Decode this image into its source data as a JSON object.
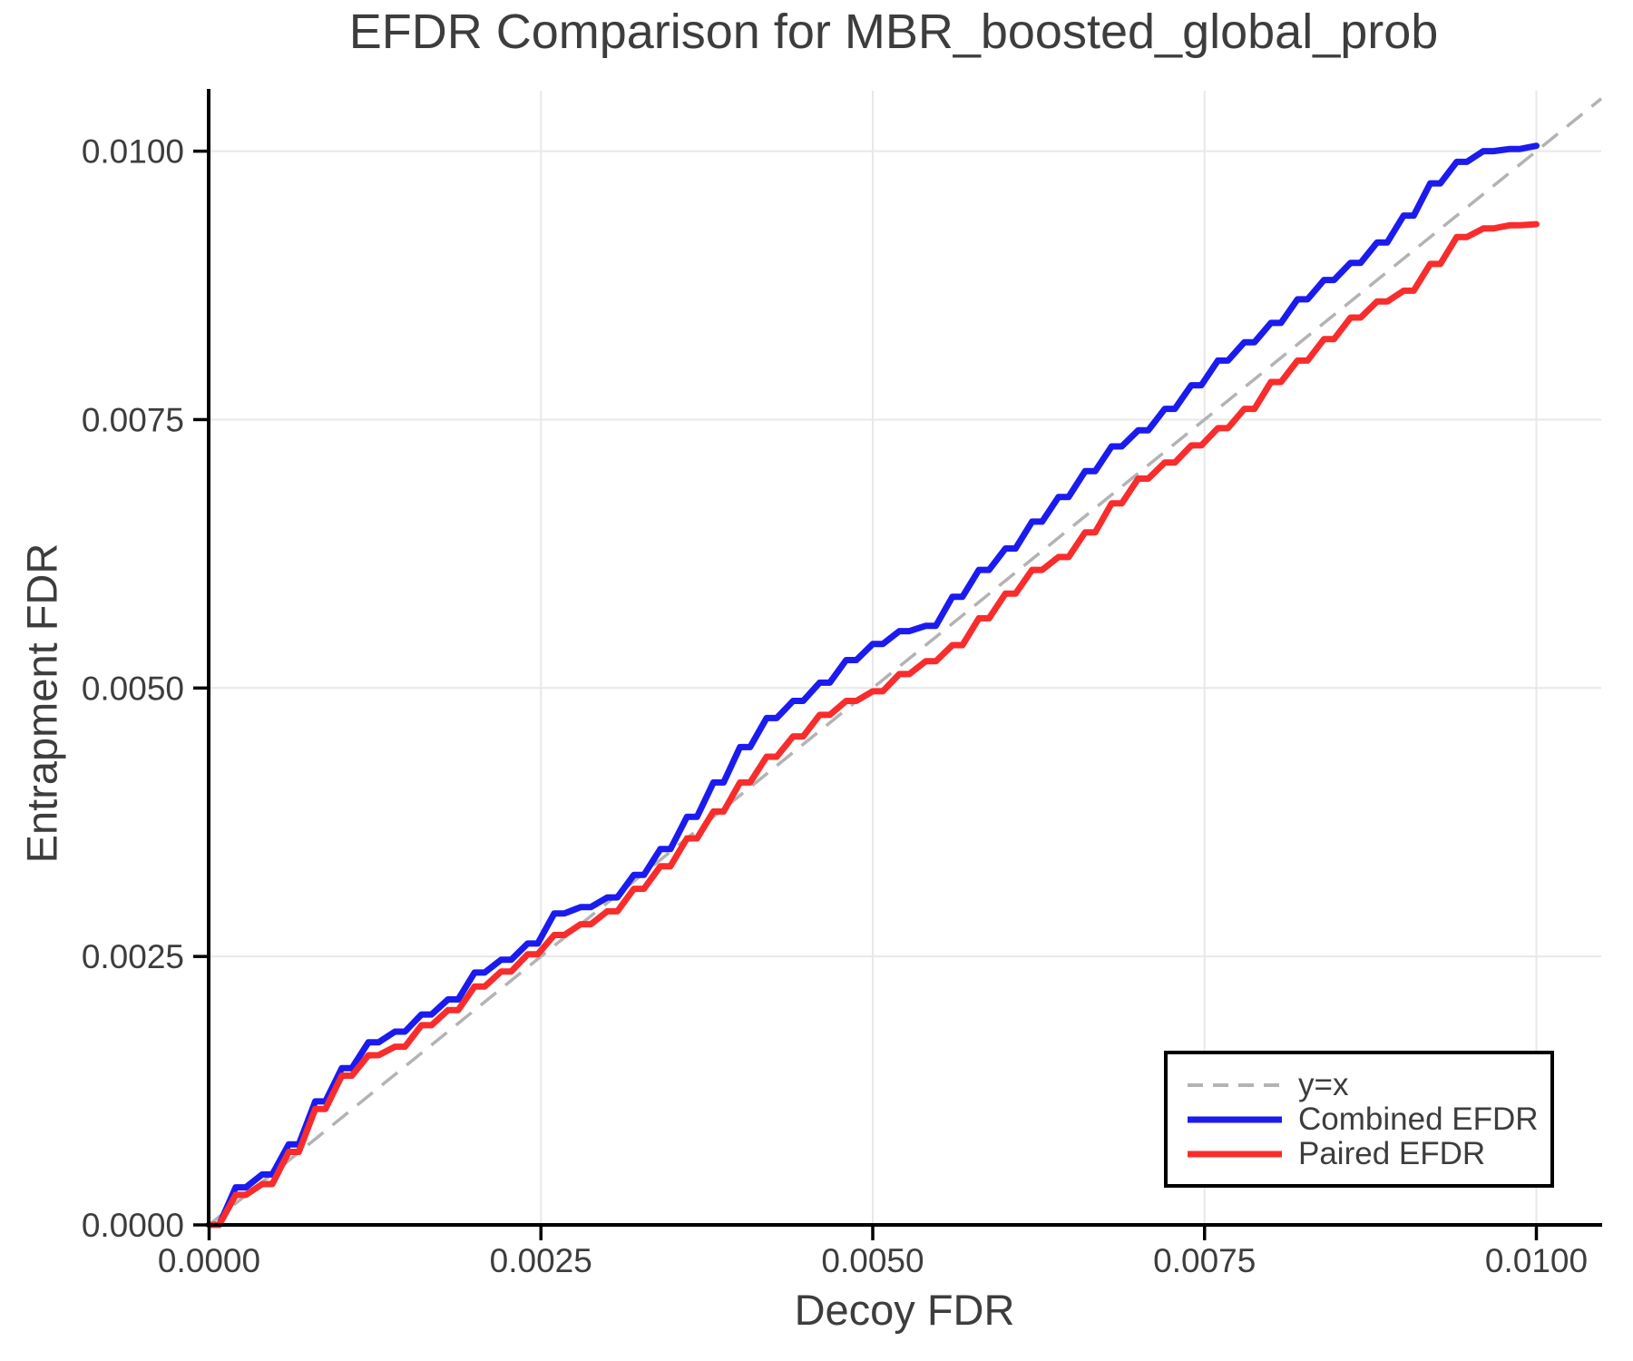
{
  "page": {
    "background": "#ffffff"
  },
  "chart_data": {
    "type": "line",
    "title": "EFDR Comparison for MBR_boosted_global_prob",
    "xlabel": "Decoy FDR",
    "ylabel": "Entrapment FDR",
    "xlim": [
      0,
      0.0105
    ],
    "ylim": [
      0,
      0.0106
    ],
    "grid": true,
    "x_ticks": {
      "values": [
        0,
        0.0025,
        0.005,
        0.0075,
        0.01
      ],
      "labels": [
        "0.0000",
        "0.0025",
        "0.0050",
        "0.0075",
        "0.0100"
      ]
    },
    "y_ticks": {
      "values": [
        0,
        0.0025,
        0.005,
        0.0075,
        0.01
      ],
      "labels": [
        "0.0000",
        "0.0025",
        "0.0050",
        "0.0075",
        "0.0100"
      ]
    },
    "legend": {
      "position": "lower right",
      "entries": [
        "y=x",
        "Combined EFDR",
        "Paired EFDR"
      ]
    },
    "reference_line": {
      "name": "y=x",
      "style": "dashed",
      "color": "#b3b3b3",
      "from": [
        0,
        0
      ],
      "to": [
        0.0105,
        0.0105
      ]
    },
    "x": [
      0,
      0.0002,
      0.0004,
      0.0006,
      0.0008,
      0.001,
      0.0012,
      0.0014,
      0.0016,
      0.0018,
      0.002,
      0.0022,
      0.0024,
      0.0026,
      0.0028,
      0.003,
      0.0032,
      0.0034,
      0.0036,
      0.0038,
      0.004,
      0.0042,
      0.0044,
      0.0046,
      0.0048,
      0.005,
      0.0052,
      0.0054,
      0.0056,
      0.0058,
      0.006,
      0.0062,
      0.0064,
      0.0066,
      0.0068,
      0.007,
      0.0072,
      0.0074,
      0.0076,
      0.0078,
      0.008,
      0.0082,
      0.0084,
      0.0086,
      0.0088,
      0.009,
      0.0092,
      0.0094,
      0.0096,
      0.0098,
      0.01
    ],
    "series": [
      {
        "name": "Combined EFDR",
        "color": "#1b1bf0",
        "values": [
          0,
          0.00035,
          0.00047,
          0.00075,
          0.00115,
          0.00146,
          0.0017,
          0.0018,
          0.00196,
          0.0021,
          0.00235,
          0.00247,
          0.00262,
          0.0029,
          0.00296,
          0.00305,
          0.00326,
          0.0035,
          0.0038,
          0.00412,
          0.00445,
          0.00472,
          0.00488,
          0.00505,
          0.00526,
          0.00541,
          0.00553,
          0.00558,
          0.00585,
          0.0061,
          0.0063,
          0.00655,
          0.00678,
          0.00702,
          0.00725,
          0.0074,
          0.0076,
          0.00782,
          0.00805,
          0.00822,
          0.0084,
          0.00862,
          0.0088,
          0.00896,
          0.00915,
          0.0094,
          0.0097,
          0.0099,
          0.01,
          0.01002,
          0.01005
        ]
      },
      {
        "name": "Paired EFDR",
        "color": "#f92c2c",
        "values": [
          0,
          0.00028,
          0.00038,
          0.00068,
          0.00108,
          0.00139,
          0.00158,
          0.00166,
          0.00186,
          0.002,
          0.00222,
          0.00236,
          0.00252,
          0.0027,
          0.0028,
          0.00292,
          0.00313,
          0.00334,
          0.0036,
          0.00385,
          0.00412,
          0.00436,
          0.00455,
          0.00475,
          0.00488,
          0.00497,
          0.00513,
          0.00525,
          0.0054,
          0.00565,
          0.00588,
          0.0061,
          0.00622,
          0.00645,
          0.00672,
          0.00695,
          0.0071,
          0.00726,
          0.00742,
          0.0076,
          0.00785,
          0.00805,
          0.00825,
          0.00845,
          0.0086,
          0.0087,
          0.00895,
          0.0092,
          0.00928,
          0.00931,
          0.00932
        ]
      }
    ],
    "styles": {
      "grid_color": "#e8e8e8",
      "spine_color": "#000000",
      "tick_color": "#000000",
      "tick_label_color": "#3d3d3d",
      "title_color": "#3d3d3d",
      "axis_label_color": "#3d3d3d",
      "legend_border_color": "#000000",
      "legend_background": "#ffffff"
    }
  }
}
